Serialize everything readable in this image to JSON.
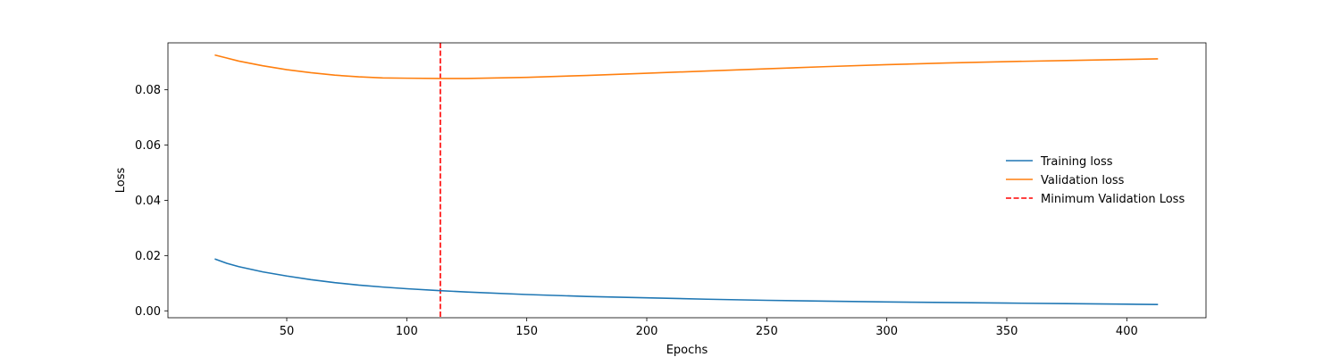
{
  "chart_data": {
    "type": "line",
    "title": "",
    "xlabel": "Epochs",
    "ylabel": "Loss",
    "xlim": [
      0.5,
      433
    ],
    "ylim": [
      -0.0025,
      0.097
    ],
    "x_ticks": [
      50,
      100,
      150,
      200,
      250,
      300,
      350,
      400
    ],
    "y_ticks": [
      0.0,
      0.02,
      0.04,
      0.06,
      0.08
    ],
    "y_tick_labels": [
      "0.00",
      "0.02",
      "0.04",
      "0.06",
      "0.08"
    ],
    "grid": false,
    "legend_position": "center-right",
    "x": [
      20,
      25,
      30,
      40,
      50,
      60,
      70,
      80,
      90,
      100,
      114,
      125,
      150,
      175,
      200,
      225,
      250,
      275,
      300,
      325,
      350,
      375,
      400,
      413
    ],
    "series": [
      {
        "name": "Training loss",
        "color": "#1f77b4",
        "style": "solid",
        "values": [
          0.0188,
          0.0172,
          0.016,
          0.0141,
          0.0126,
          0.0113,
          0.0102,
          0.0093,
          0.0086,
          0.008,
          0.0073,
          0.0068,
          0.0059,
          0.0052,
          0.0047,
          0.0042,
          0.0038,
          0.0035,
          0.0032,
          0.003,
          0.0028,
          0.0026,
          0.0024,
          0.0023
        ]
      },
      {
        "name": "Validation loss",
        "color": "#ff7f0e",
        "style": "solid",
        "values": [
          0.0926,
          0.0915,
          0.0904,
          0.0887,
          0.0873,
          0.0862,
          0.0853,
          0.0847,
          0.0843,
          0.0842,
          0.0841,
          0.0841,
          0.0845,
          0.0852,
          0.086,
          0.0868,
          0.0876,
          0.0884,
          0.0891,
          0.0897,
          0.0902,
          0.0906,
          0.091,
          0.0912
        ]
      }
    ],
    "vlines": [
      {
        "name": "Minimum Validation Loss",
        "x": 114,
        "color": "#ff0000",
        "style": "dashed"
      }
    ]
  }
}
